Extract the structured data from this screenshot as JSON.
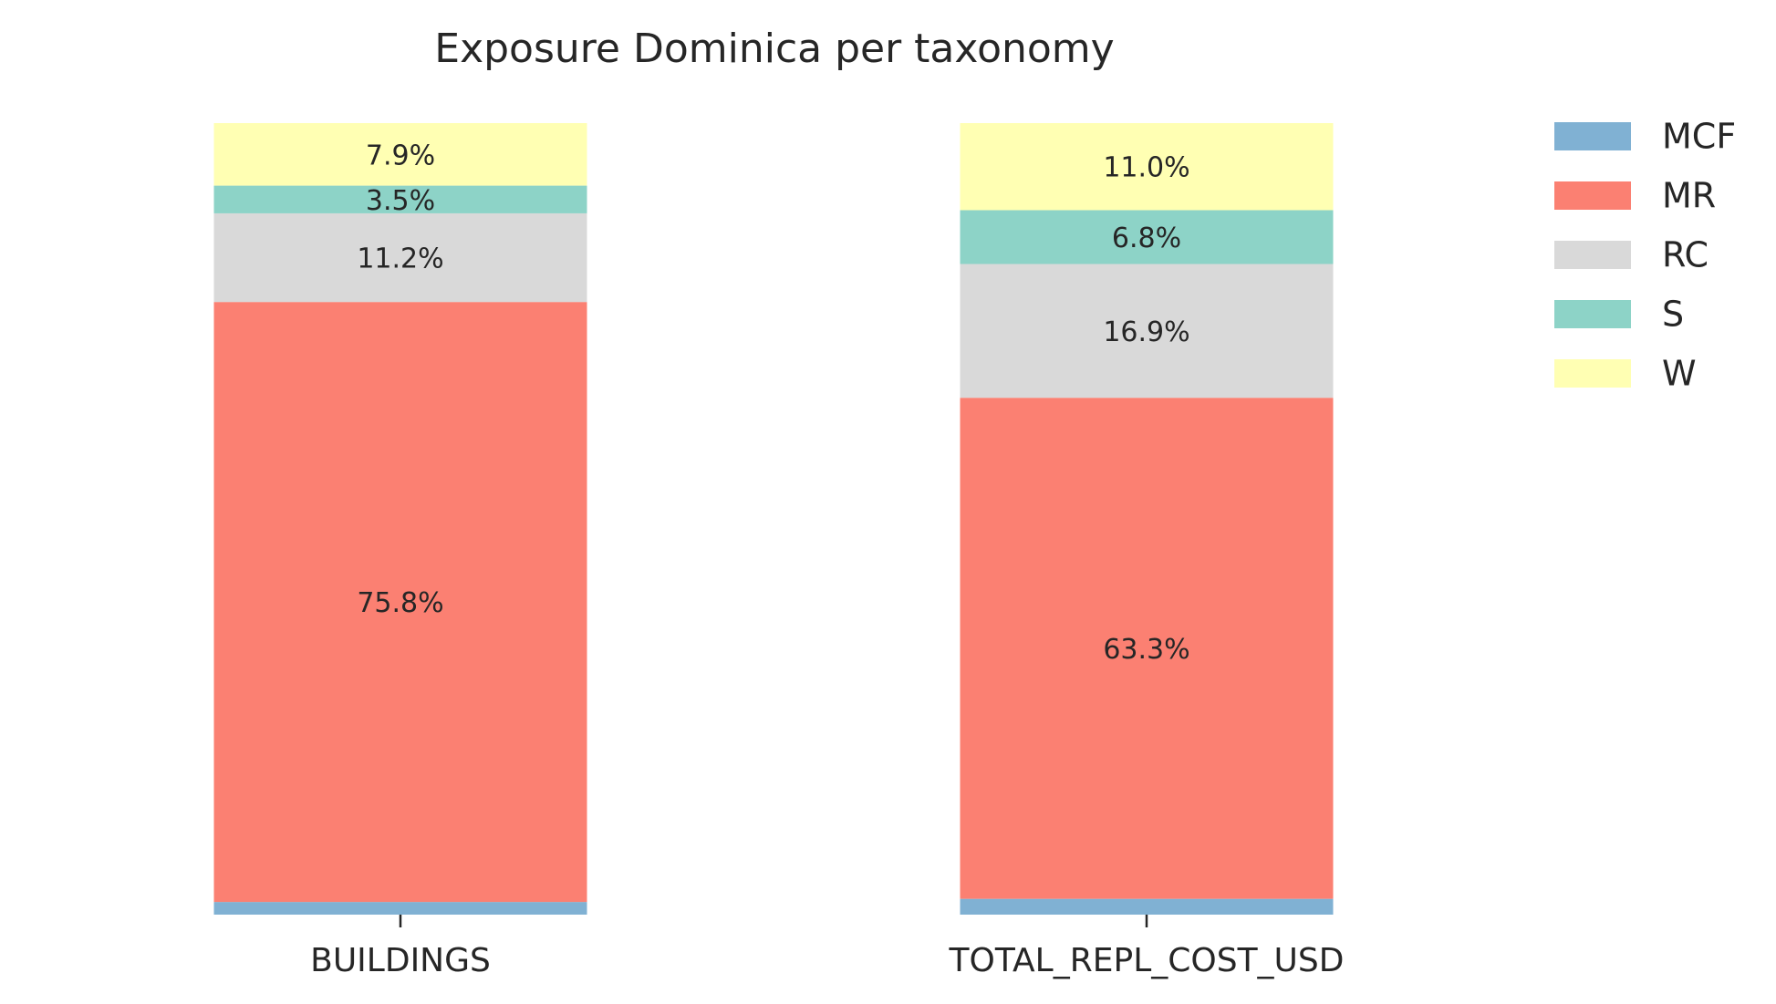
{
  "chart_data": {
    "type": "bar",
    "stacked": true,
    "normalized": "percent",
    "title": "Exposure Dominica per taxonomy",
    "xlabel": "",
    "ylabel": "",
    "ylim": [
      0,
      100
    ],
    "grid": false,
    "legend_position": "top-right",
    "categories": [
      "BUILDINGS",
      "TOTAL_REPL_COST_USD"
    ],
    "series": [
      {
        "name": "MCF",
        "color": "#80b1d3",
        "values": [
          1.6,
          2.0
        ],
        "labels": [
          "",
          ""
        ]
      },
      {
        "name": "MR",
        "color": "#fb8072",
        "values": [
          75.8,
          63.3
        ],
        "labels": [
          "75.8%",
          "63.3%"
        ]
      },
      {
        "name": "RC",
        "color": "#d9d9d9",
        "values": [
          11.2,
          16.9
        ],
        "labels": [
          "11.2%",
          "16.9%"
        ]
      },
      {
        "name": "S",
        "color": "#8dd3c7",
        "values": [
          3.5,
          6.8
        ],
        "labels": [
          "3.5%",
          "6.8%"
        ]
      },
      {
        "name": "W",
        "color": "#ffffb3",
        "values": [
          7.9,
          11.0
        ],
        "labels": [
          "7.9%",
          "11.0%"
        ]
      }
    ]
  }
}
